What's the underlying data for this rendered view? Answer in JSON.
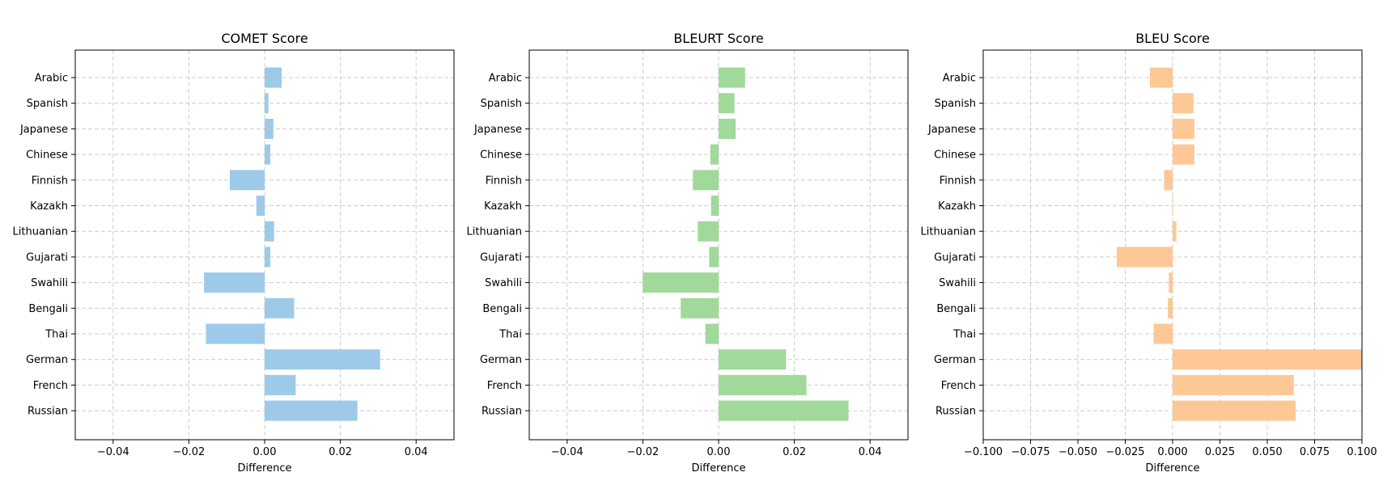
{
  "chart_data": [
    {
      "type": "bar",
      "orientation": "horizontal",
      "title": "COMET Score",
      "xlabel": "Difference",
      "ylabel": "",
      "xlim": [
        -0.05,
        0.05
      ],
      "xticks": [
        -0.04,
        -0.02,
        0.0,
        0.02,
        0.04
      ],
      "xtick_labels": [
        "−0.04",
        "−0.02",
        "0.00",
        "0.02",
        "0.04"
      ],
      "grid": true,
      "color": "#9ecae9",
      "categories": [
        "Arabic",
        "Spanish",
        "Japanese",
        "Chinese",
        "Finnish",
        "Kazakh",
        "Lithuanian",
        "Gujarati",
        "Swahili",
        "Bengali",
        "Thai",
        "German",
        "French",
        "Russian"
      ],
      "values": [
        0.0045,
        0.001,
        0.0023,
        0.0015,
        -0.0092,
        -0.0022,
        0.0025,
        0.0015,
        -0.016,
        0.0078,
        -0.0155,
        0.0305,
        0.0082,
        0.0245
      ]
    },
    {
      "type": "bar",
      "orientation": "horizontal",
      "title": "BLEURT Score",
      "xlabel": "Difference",
      "ylabel": "",
      "xlim": [
        -0.05,
        0.05
      ],
      "xticks": [
        -0.04,
        -0.02,
        0.0,
        0.02,
        0.04
      ],
      "xtick_labels": [
        "−0.04",
        "−0.02",
        "0.00",
        "0.02",
        "0.04"
      ],
      "grid": true,
      "color": "#a1d99b",
      "categories": [
        "Arabic",
        "Spanish",
        "Japanese",
        "Chinese",
        "Finnish",
        "Kazakh",
        "Lithuanian",
        "Gujarati",
        "Swahili",
        "Bengali",
        "Thai",
        "German",
        "French",
        "Russian"
      ],
      "values": [
        0.007,
        0.0042,
        0.0045,
        -0.0022,
        -0.0068,
        -0.002,
        -0.0055,
        -0.0025,
        -0.02,
        -0.01,
        -0.0035,
        0.0178,
        0.0232,
        0.0343
      ]
    },
    {
      "type": "bar",
      "orientation": "horizontal",
      "title": "BLEU Score",
      "xlabel": "Difference",
      "ylabel": "",
      "xlim": [
        -0.1,
        0.1
      ],
      "xticks": [
        -0.1,
        -0.075,
        -0.05,
        -0.025,
        0.0,
        0.025,
        0.05,
        0.075,
        0.1
      ],
      "xtick_labels": [
        "−0.100",
        "−0.075",
        "−0.050",
        "−0.025",
        "0.000",
        "0.025",
        "0.050",
        "0.075",
        "0.100"
      ],
      "grid": true,
      "color": "#fdc895",
      "categories": [
        "Arabic",
        "Spanish",
        "Japanese",
        "Chinese",
        "Finnish",
        "Kazakh",
        "Lithuanian",
        "Gujarati",
        "Swahili",
        "Bengali",
        "Thai",
        "German",
        "French",
        "Russian"
      ],
      "values": [
        -0.012,
        0.011,
        0.0115,
        0.0115,
        -0.0045,
        0.0003,
        0.002,
        -0.0295,
        -0.002,
        -0.0025,
        -0.01,
        0.1,
        0.064,
        0.065
      ]
    }
  ]
}
